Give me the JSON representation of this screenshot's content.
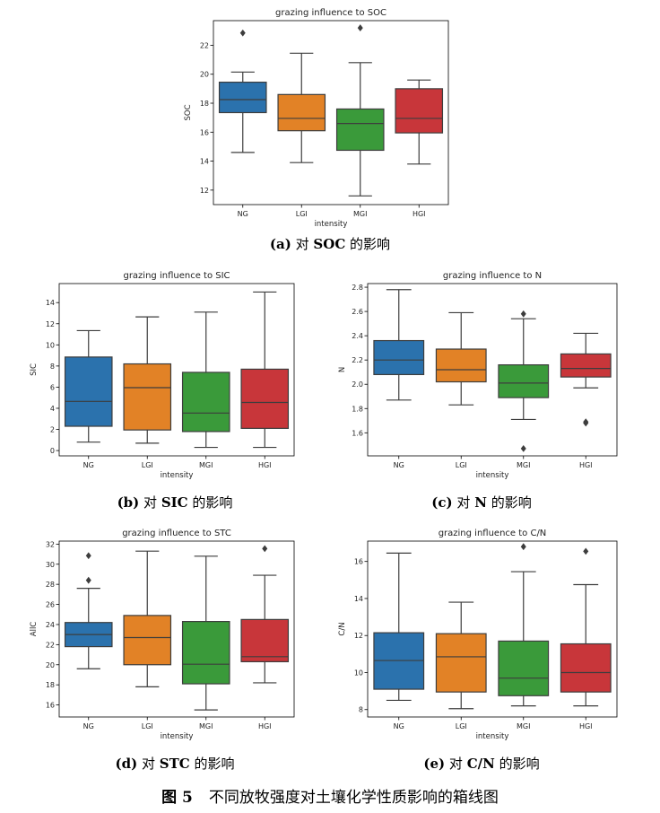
{
  "colors": {
    "NG": "#2b72ad",
    "LGI": "#e28226",
    "MGI": "#3a9a3a",
    "HGI": "#c8363a"
  },
  "captions": [
    {
      "label": "(a)",
      "text": "对",
      "name": "SOC",
      "suffix": "的影响"
    },
    {
      "label": "(b)",
      "text": "对",
      "name": "SIC",
      "suffix": "的影响"
    },
    {
      "label": "(c)",
      "text": "对",
      "name": "N",
      "suffix": "的影响"
    },
    {
      "label": "(d)",
      "text": "对",
      "name": "STC",
      "suffix": "的影响"
    },
    {
      "label": "(e)",
      "text": "对",
      "name": "C/N",
      "suffix": "的影响"
    }
  ],
  "figure_caption": {
    "number": "图 5",
    "text": "不同放牧强度对土壤化学性质影响的箱线图"
  },
  "chart_data": [
    {
      "type": "box",
      "title": "grazing influence to SOC",
      "xlabel": "intensity",
      "ylabel": "SOC",
      "categories": [
        "NG",
        "LGI",
        "MGI",
        "HGI"
      ],
      "ylim": [
        11,
        23.7
      ],
      "yticks": [
        12,
        14,
        16,
        18,
        20,
        22
      ],
      "ytick_labels": [
        "12",
        "14",
        "16",
        "18",
        "20",
        "22"
      ],
      "boxes": [
        {
          "whislo": 14.6,
          "q1": 17.35,
          "med": 18.25,
          "q3": 19.45,
          "whishi": 20.15,
          "fliers": [
            22.85
          ]
        },
        {
          "whislo": 13.9,
          "q1": 16.1,
          "med": 16.95,
          "q3": 18.6,
          "whishi": 21.45,
          "fliers": []
        },
        {
          "whislo": 11.6,
          "q1": 14.75,
          "med": 16.6,
          "q3": 17.6,
          "whishi": 20.8,
          "fliers": [
            23.2
          ]
        },
        {
          "whislo": 13.8,
          "q1": 15.95,
          "med": 16.95,
          "q3": 19.0,
          "whishi": 19.6,
          "fliers": []
        }
      ]
    },
    {
      "type": "box",
      "title": "grazing influence to SIC",
      "xlabel": "intensity",
      "ylabel": "SIC",
      "categories": [
        "NG",
        "LGI",
        "MGI",
        "HGI"
      ],
      "ylim": [
        -0.5,
        15.8
      ],
      "yticks": [
        0,
        2,
        4,
        6,
        8,
        10,
        12,
        14
      ],
      "ytick_labels": [
        "0",
        "2",
        "4",
        "6",
        "8",
        "10",
        "12",
        "14"
      ],
      "boxes": [
        {
          "whislo": 0.8,
          "q1": 2.3,
          "med": 4.65,
          "q3": 8.85,
          "whishi": 11.35,
          "fliers": []
        },
        {
          "whislo": 0.7,
          "q1": 1.95,
          "med": 5.95,
          "q3": 8.2,
          "whishi": 12.65,
          "fliers": []
        },
        {
          "whislo": 0.3,
          "q1": 1.8,
          "med": 3.55,
          "q3": 7.4,
          "whishi": 13.1,
          "fliers": []
        },
        {
          "whislo": 0.3,
          "q1": 2.1,
          "med": 4.55,
          "q3": 7.7,
          "whishi": 15.0,
          "fliers": []
        }
      ]
    },
    {
      "type": "box",
      "title": "grazing influence to N",
      "xlabel": "intensity",
      "ylabel": "N",
      "categories": [
        "NG",
        "LGI",
        "MGI",
        "HGI"
      ],
      "ylim": [
        1.41,
        2.83
      ],
      "yticks": [
        1.6,
        1.8,
        2.0,
        2.2,
        2.4,
        2.6,
        2.8
      ],
      "ytick_labels": [
        "1.6",
        "1.8",
        "2.0",
        "2.2",
        "2.4",
        "2.6",
        "2.8"
      ],
      "boxes": [
        {
          "whislo": 1.87,
          "q1": 2.08,
          "med": 2.2,
          "q3": 2.36,
          "whishi": 2.78,
          "fliers": []
        },
        {
          "whislo": 1.83,
          "q1": 2.02,
          "med": 2.12,
          "q3": 2.29,
          "whishi": 2.59,
          "fliers": []
        },
        {
          "whislo": 1.71,
          "q1": 1.89,
          "med": 2.01,
          "q3": 2.16,
          "whishi": 2.54,
          "fliers": [
            2.58,
            1.47
          ]
        },
        {
          "whislo": 1.97,
          "q1": 2.06,
          "med": 2.13,
          "q3": 2.25,
          "whishi": 2.42,
          "fliers": [
            1.69,
            1.68
          ]
        }
      ]
    },
    {
      "type": "box",
      "title": "grazing influence to STC",
      "xlabel": "intensity",
      "ylabel": "AllC",
      "categories": [
        "NG",
        "LGI",
        "MGI",
        "HGI"
      ],
      "ylim": [
        14.8,
        32.3
      ],
      "yticks": [
        16,
        18,
        20,
        22,
        24,
        26,
        28,
        30,
        32
      ],
      "ytick_labels": [
        "16",
        "18",
        "20",
        "22",
        "24",
        "26",
        "28",
        "30",
        "32"
      ],
      "boxes": [
        {
          "whislo": 19.6,
          "q1": 21.8,
          "med": 23.0,
          "q3": 24.2,
          "whishi": 27.6,
          "fliers": [
            28.4,
            30.85
          ]
        },
        {
          "whislo": 17.8,
          "q1": 20.0,
          "med": 22.7,
          "q3": 24.9,
          "whishi": 31.3,
          "fliers": []
        },
        {
          "whislo": 15.5,
          "q1": 18.1,
          "med": 20.05,
          "q3": 24.3,
          "whishi": 30.8,
          "fliers": []
        },
        {
          "whislo": 18.2,
          "q1": 20.3,
          "med": 20.8,
          "q3": 24.5,
          "whishi": 28.9,
          "fliers": [
            31.55
          ]
        }
      ]
    },
    {
      "type": "box",
      "title": "grazing influence to C/N",
      "xlabel": "intensity",
      "ylabel": "C/N",
      "categories": [
        "NG",
        "LGI",
        "MGI",
        "HGI"
      ],
      "ylim": [
        7.6,
        17.1
      ],
      "yticks": [
        8,
        10,
        12,
        14,
        16
      ],
      "ytick_labels": [
        "8",
        "10",
        "12",
        "14",
        "16"
      ],
      "boxes": [
        {
          "whislo": 8.5,
          "q1": 9.1,
          "med": 10.65,
          "q3": 12.15,
          "whishi": 16.45,
          "fliers": []
        },
        {
          "whislo": 8.05,
          "q1": 8.95,
          "med": 10.85,
          "q3": 12.1,
          "whishi": 13.8,
          "fliers": []
        },
        {
          "whislo": 8.2,
          "q1": 8.75,
          "med": 9.7,
          "q3": 11.7,
          "whishi": 15.45,
          "fliers": [
            16.8
          ]
        },
        {
          "whislo": 8.2,
          "q1": 8.95,
          "med": 10.0,
          "q3": 11.55,
          "whishi": 14.75,
          "fliers": [
            16.55
          ]
        }
      ]
    }
  ]
}
